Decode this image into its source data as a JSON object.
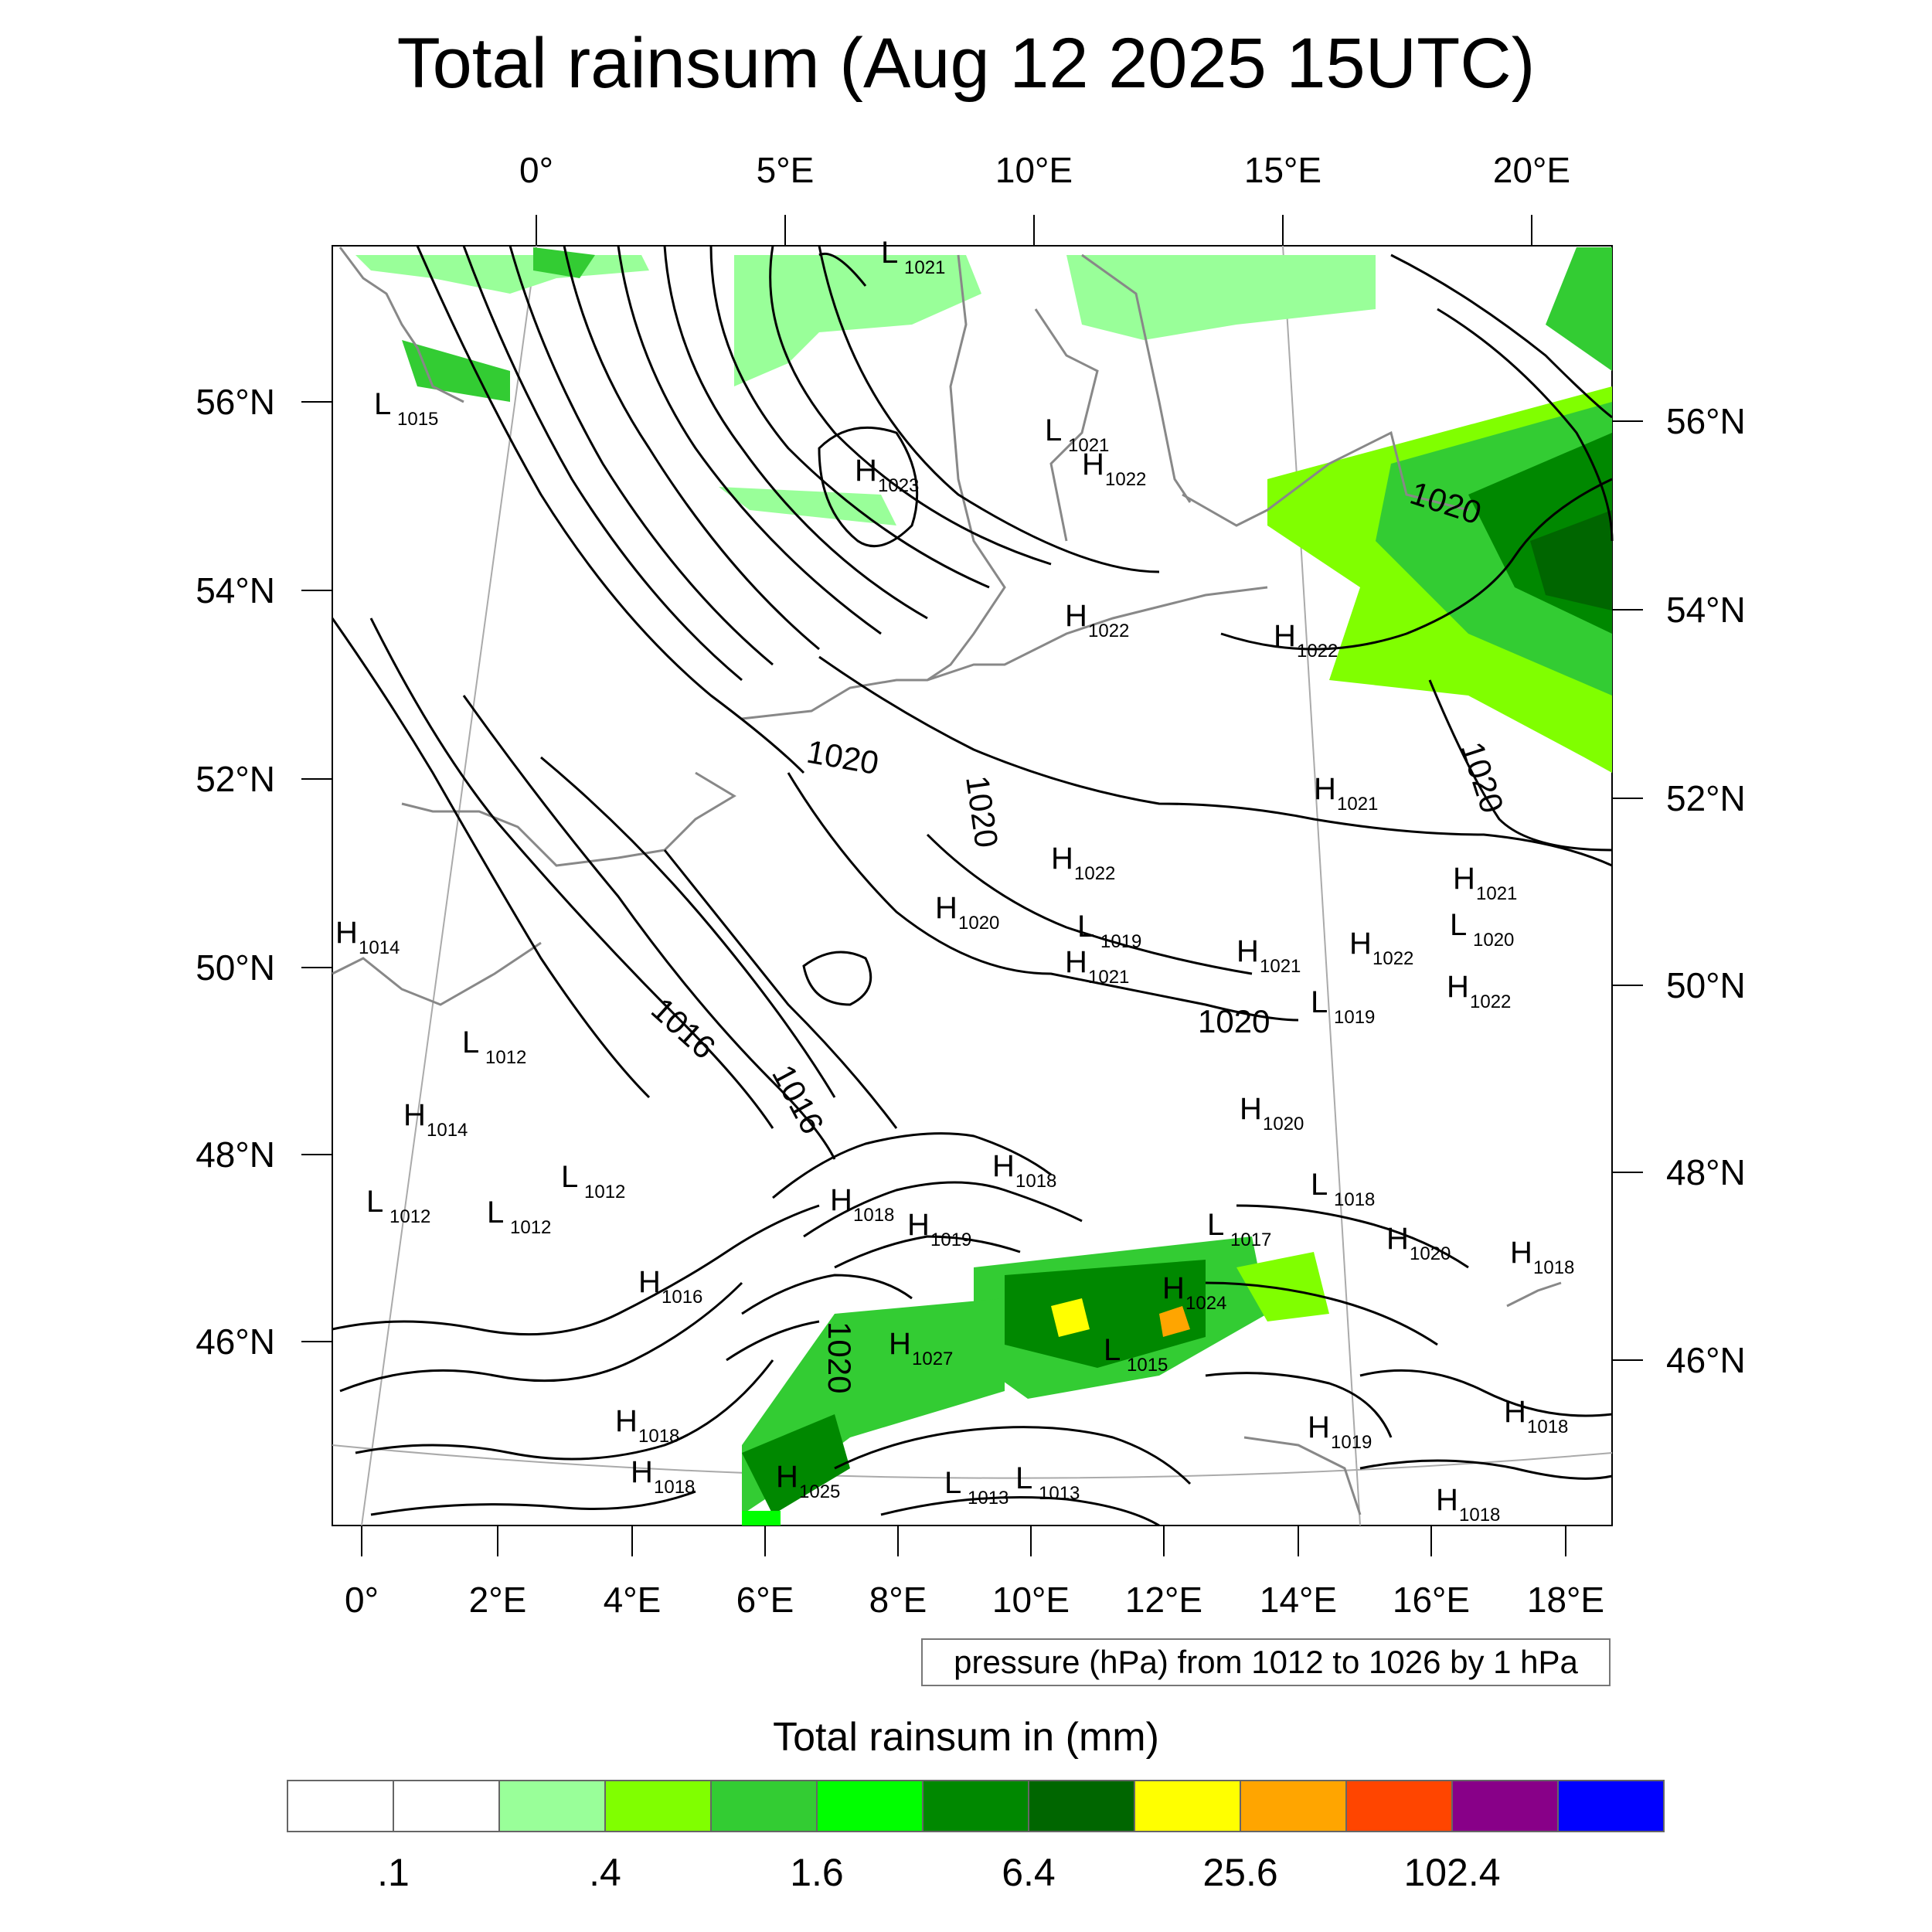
{
  "title": "Total rainsum (Aug 12 2025 15UTC)",
  "top_axis_labels": [
    "0°",
    "5°E",
    "10°E",
    "15°E",
    "20°E"
  ],
  "bottom_axis_labels": [
    "0°",
    "2°E",
    "4°E",
    "6°E",
    "8°E",
    "10°E",
    "12°E",
    "14°E",
    "16°E",
    "18°E"
  ],
  "left_axis_labels": [
    "56°N",
    "54°N",
    "52°N",
    "50°N",
    "48°N",
    "46°N"
  ],
  "right_axis_labels": [
    "56°N",
    "54°N",
    "52°N",
    "50°N",
    "48°N",
    "46°N"
  ],
  "contour_info": "pressure (hPa) from 1012 to 1026 by 1 hPa",
  "colorbar": {
    "title": "Total rainsum in (mm)",
    "colors": [
      "#ffffff",
      "#ffffff",
      "#99ff99",
      "#80ff00",
      "#33cc33",
      "#00ff00",
      "#008800",
      "#006600",
      "#ffff00",
      "#ffa500",
      "#ff4500",
      "#880088",
      "#0000ff"
    ],
    "tick_labels": [
      ".1",
      ".4",
      "1.6",
      "6.4",
      "25.6",
      "102.4"
    ]
  },
  "pressure_centers": [
    {
      "type": "H",
      "value": "1023"
    },
    {
      "type": "L",
      "value": "1021"
    },
    {
      "type": "H",
      "value": "1022"
    },
    {
      "type": "L",
      "value": "1015"
    },
    {
      "type": "L",
      "value": "1021"
    },
    {
      "type": "H",
      "value": "1022"
    },
    {
      "type": "H",
      "value": "1022"
    },
    {
      "type": "H",
      "value": "1021"
    },
    {
      "type": "H",
      "value": "1022"
    },
    {
      "type": "H",
      "value": "1020"
    },
    {
      "type": "L",
      "value": "1019"
    },
    {
      "type": "H",
      "value": "1021"
    },
    {
      "type": "H",
      "value": "1021"
    },
    {
      "type": "H",
      "value": "1014"
    },
    {
      "type": "L",
      "value": "1012"
    },
    {
      "type": "H",
      "value": "1014"
    },
    {
      "type": "L",
      "value": "1012"
    },
    {
      "type": "L",
      "value": "1012"
    },
    {
      "type": "L",
      "value": "1012"
    },
    {
      "type": "H",
      "value": "1018"
    },
    {
      "type": "H",
      "value": "1018"
    },
    {
      "type": "H",
      "value": "1019"
    },
    {
      "type": "H",
      "value": "1020"
    },
    {
      "type": "L",
      "value": "1018"
    },
    {
      "type": "L",
      "value": "1019"
    },
    {
      "type": "H",
      "value": "1022"
    },
    {
      "type": "H",
      "value": "1021"
    },
    {
      "type": "L",
      "value": "1020"
    },
    {
      "type": "H",
      "value": "1022"
    },
    {
      "type": "H",
      "value": "1020"
    },
    {
      "type": "H",
      "value": "1018"
    },
    {
      "type": "H",
      "value": "1016"
    },
    {
      "type": "H",
      "value": "1027"
    },
    {
      "type": "H",
      "value": "1024"
    },
    {
      "type": "L",
      "value": "1015"
    },
    {
      "type": "L",
      "value": "1017"
    },
    {
      "type": "H",
      "value": "1018"
    },
    {
      "type": "H",
      "value": "1018"
    },
    {
      "type": "H",
      "value": "1025"
    },
    {
      "type": "L",
      "value": "1013"
    },
    {
      "type": "L",
      "value": "1013"
    },
    {
      "type": "H",
      "value": "1019"
    },
    {
      "type": "H",
      "value": "1018"
    },
    {
      "type": "H",
      "value": "1018"
    }
  ],
  "isobar_labels": [
    "1020",
    "1020",
    "1020",
    "1020",
    "1016",
    "1016",
    "1020",
    "1020"
  ]
}
